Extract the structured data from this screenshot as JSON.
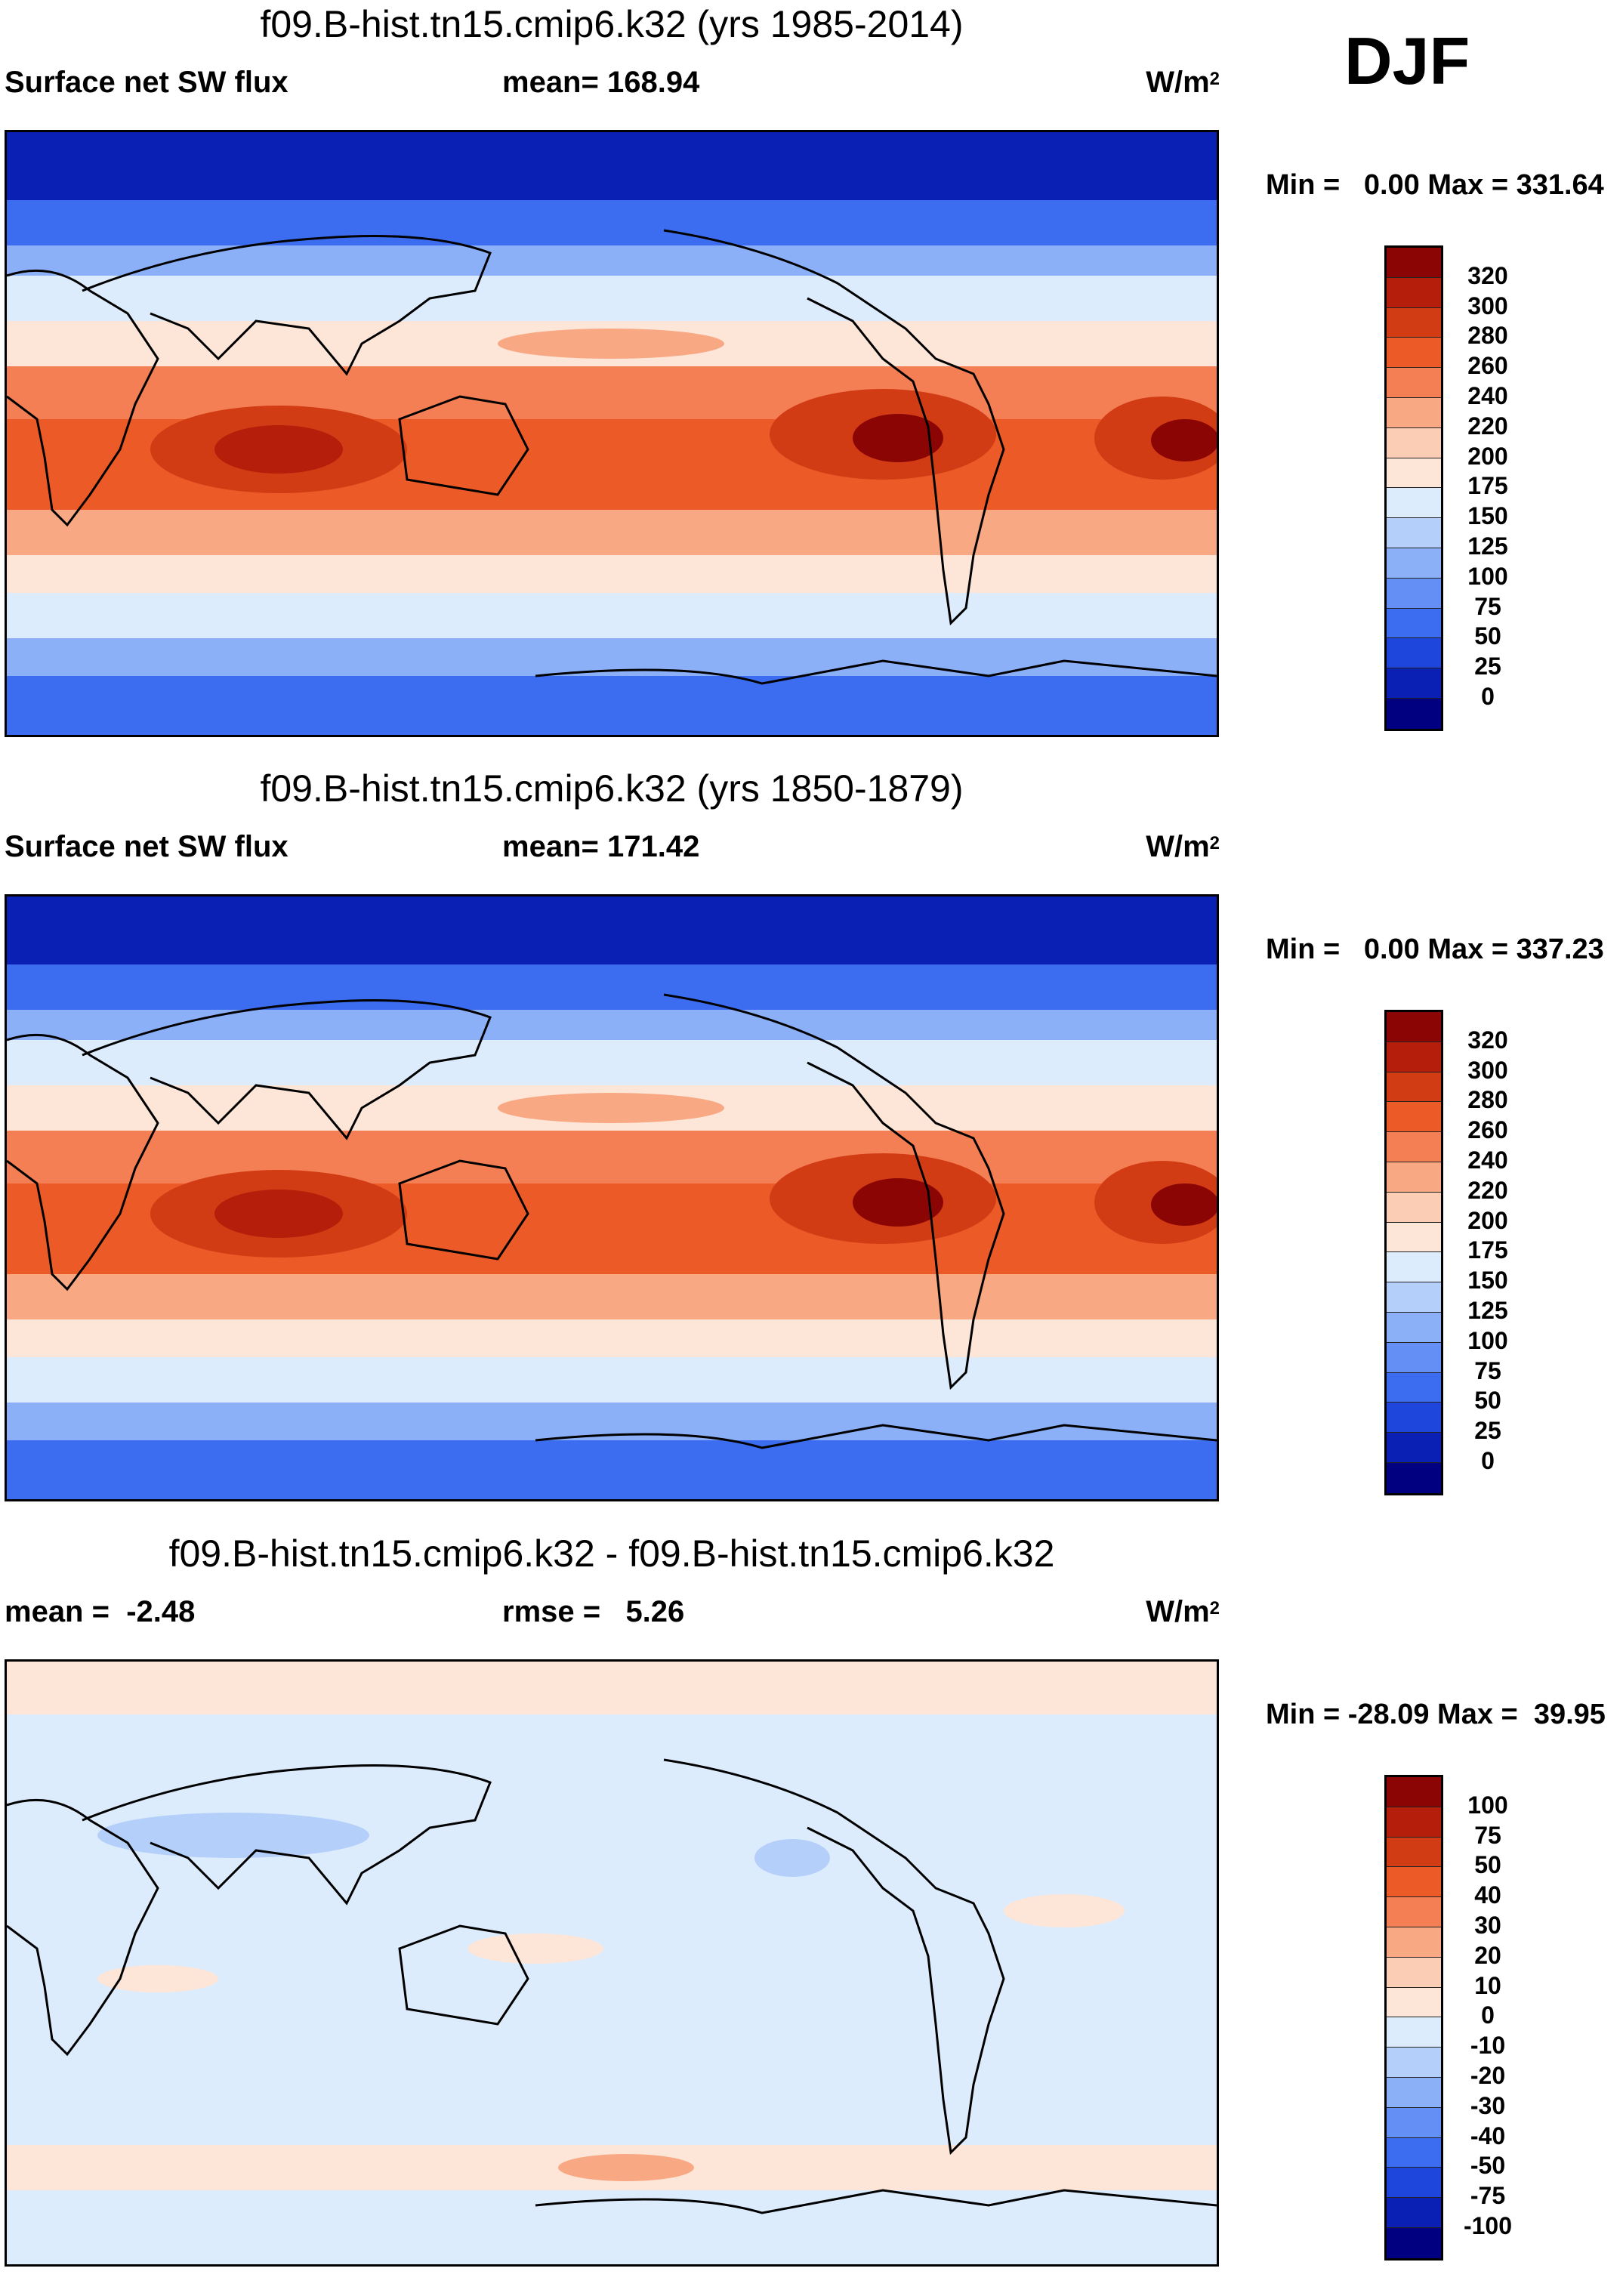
{
  "season": "DJF",
  "units_label": "W/m",
  "units_sup": "2",
  "colors": {
    "abs": [
      "#000080",
      "#0a20b4",
      "#1e46dc",
      "#3c6cf0",
      "#6490f5",
      "#8cb0f8",
      "#b4d0fa",
      "#dcecfc",
      "#fde6d8",
      "#fbcdb4",
      "#f8a882",
      "#f47f55",
      "#ec5a28",
      "#d23c14",
      "#b41e0a",
      "#8c0505"
    ],
    "diff": [
      "#000080",
      "#0a20b4",
      "#1e46dc",
      "#3c6cf0",
      "#6490f5",
      "#8cb0f8",
      "#b4d0fa",
      "#dcecfc",
      "#fde6d8",
      "#fbcdb4",
      "#f8a882",
      "#f47f55",
      "#ec5a28",
      "#d23c14",
      "#b41e0a",
      "#8c0505"
    ]
  },
  "panels": [
    {
      "title": "f09.B-hist.tn15.cmip6.k32 (yrs 1985-2014)",
      "left_label": "Surface net SW flux",
      "mid_label": "mean= 168.94",
      "minmax": "Min =   0.00 Max = 331.64",
      "levels": [
        "320",
        "300",
        "280",
        "260",
        "240",
        "220",
        "200",
        "175",
        "150",
        "125",
        "100",
        "75",
        "50",
        "25",
        "0"
      ]
    },
    {
      "title": "f09.B-hist.tn15.cmip6.k32 (yrs 1850-1879)",
      "left_label": "Surface net SW flux",
      "mid_label": "mean= 171.42",
      "minmax": "Min =   0.00 Max = 337.23",
      "levels": [
        "320",
        "300",
        "280",
        "260",
        "240",
        "220",
        "200",
        "175",
        "150",
        "125",
        "100",
        "75",
        "50",
        "25",
        "0"
      ]
    },
    {
      "title": "f09.B-hist.tn15.cmip6.k32 - f09.B-hist.tn15.cmip6.k32",
      "left_label": "mean =  -2.48",
      "mid_label": "rmse =   5.26",
      "minmax": "Min = -28.09 Max =  39.95",
      "levels": [
        "100",
        "75",
        "50",
        "40",
        "30",
        "20",
        "10",
        "0",
        "-10",
        "-20",
        "-30",
        "-40",
        "-50",
        "-75",
        "-100"
      ]
    }
  ]
}
